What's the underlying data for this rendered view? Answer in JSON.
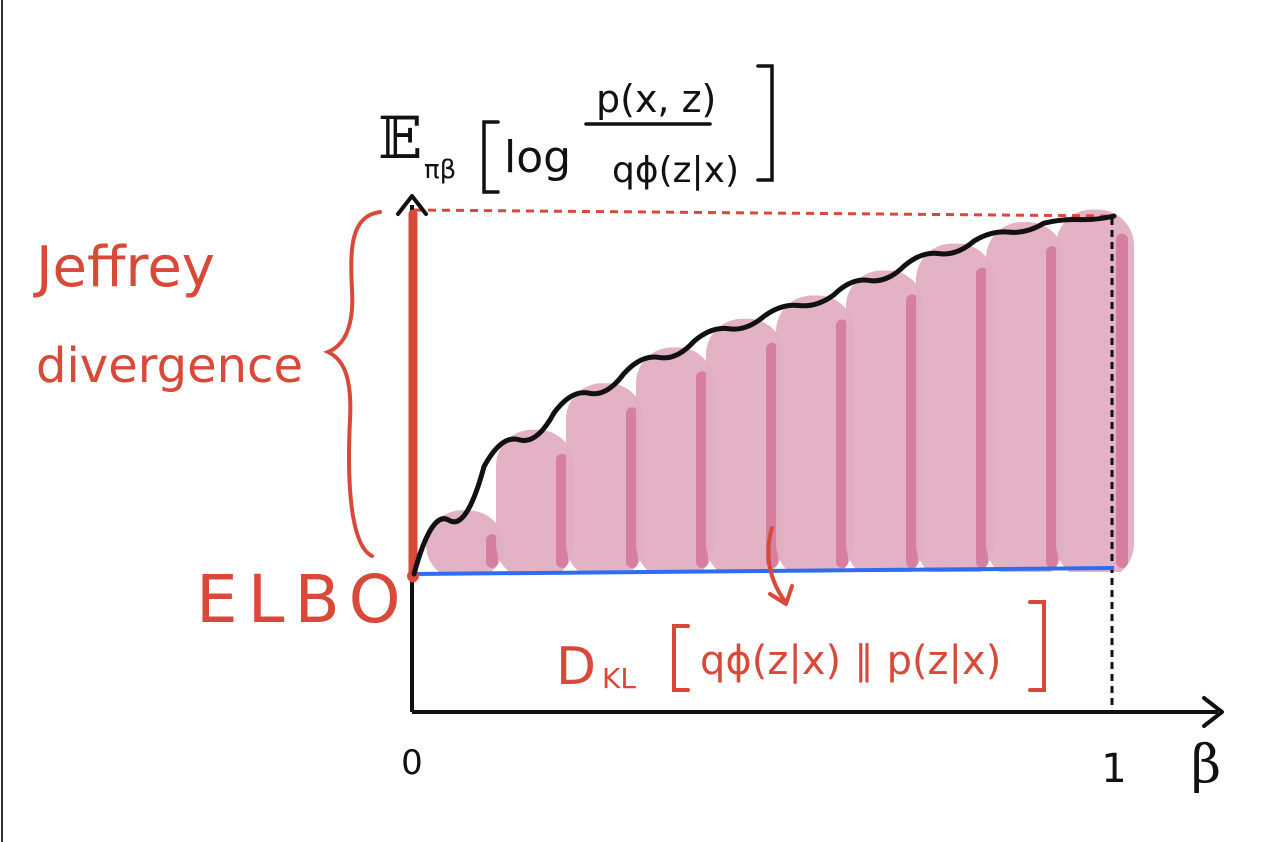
{
  "colors": {
    "ink": "#111111",
    "red": "#d9493a",
    "blue": "#2f6cf0",
    "band": "#e2aec1",
    "band_dark": "#d67f9f"
  },
  "labels": {
    "y_axis": {
      "expectation": "𝔼",
      "subscript": "πβ",
      "log": "log",
      "numerator": "p(x, z)",
      "denominator": "qϕ(z|x)"
    },
    "jeffrey_line1": "Jeffrey",
    "jeffrey_line2": "divergence",
    "elbo": "ELBO",
    "kl_D": "D",
    "kl_sub": "KL",
    "kl_body": "qϕ(z|x) ∥ p(z|x)",
    "tick_zero": "0",
    "tick_one": "1",
    "x_axis": "β"
  },
  "chart_data": {
    "type": "area",
    "x": [
      0,
      0.1,
      0.2,
      0.3,
      0.4,
      0.5,
      0.6,
      0.7,
      0.8,
      0.9,
      1.0
    ],
    "curve": [
      0.0,
      0.3,
      0.45,
      0.56,
      0.65,
      0.72,
      0.78,
      0.86,
      0.93,
      0.98,
      1.0
    ],
    "elbo": 0,
    "xlim": [
      0,
      1
    ]
  }
}
